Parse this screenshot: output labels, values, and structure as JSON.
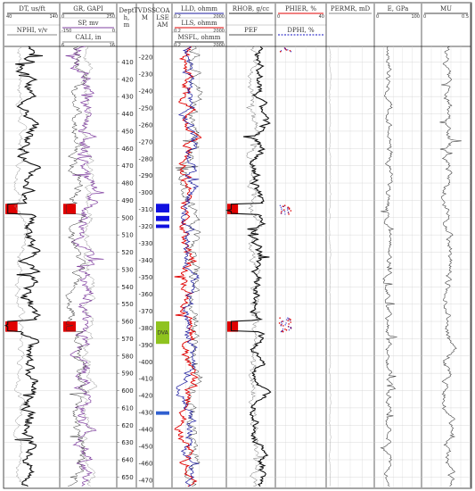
{
  "chart_data": {
    "type": "line",
    "title": "",
    "depth_track": {
      "title": "Dept h, m",
      "ticks": [
        "410",
        "420",
        "430",
        "440",
        "450",
        "460",
        "470",
        "480",
        "490",
        "500",
        "510",
        "520",
        "530",
        "540",
        "550",
        "560",
        "570",
        "580",
        "590",
        "600",
        "610",
        "620",
        "630",
        "640",
        "650"
      ]
    },
    "tvdss_track": {
      "title": "TVDSS M",
      "ticks": [
        "-220",
        "-230",
        "-240",
        "-250",
        "-260",
        "-270",
        "-280",
        "-290",
        "-300",
        "-310",
        "-320",
        "-330",
        "-340",
        "-350",
        "-360",
        "-370",
        "-380",
        "-390",
        "-400",
        "-410",
        "-420",
        "-430",
        "-440",
        "-450",
        "-460",
        "-470"
      ]
    },
    "zone_track": {
      "title": "COA LSE AM",
      "zones": [
        {
          "label": "",
          "top": 492,
          "bottom": 497,
          "color": "#1010e0"
        },
        {
          "label": "",
          "top": 499,
          "bottom": 502,
          "color": "#1010e0"
        },
        {
          "label": "",
          "top": 504,
          "bottom": 506,
          "color": "#1010e0"
        },
        {
          "label": "DVA",
          "top": 560,
          "bottom": 573,
          "color": "#8fc31f"
        },
        {
          "label": "",
          "top": 612,
          "bottom": 614,
          "color": "#3060d0"
        }
      ]
    },
    "tracks": [
      {
        "id": "sonic",
        "curves": [
          {
            "name": "DT, us/ft",
            "min": "40",
            "max": "140",
            "color": "#333333",
            "style": "solid"
          },
          {
            "name": "NPHI, v/v",
            "min": "",
            "max": "",
            "color": "#888888",
            "style": "solid"
          }
        ],
        "fills": [
          {
            "top": 492,
            "bottom": 498,
            "color": "#e00000"
          },
          {
            "top": 560,
            "bottom": 566,
            "color": "#e00000"
          }
        ]
      },
      {
        "id": "gr",
        "curves": [
          {
            "name": "GR, GAPI",
            "min": "0",
            "max": "250",
            "color": "#222222",
            "style": "solid"
          },
          {
            "name": "SP, mv",
            "min": "-150",
            "max": "0",
            "color": "#8040a0",
            "style": "solid"
          },
          {
            "name": "CALI, in",
            "min": "6",
            "max": "16",
            "color": "#888888",
            "style": "solid"
          }
        ],
        "fills": [
          {
            "top": 492,
            "bottom": 498,
            "color": "#e00000"
          },
          {
            "top": 560,
            "bottom": 566,
            "color": "#e00000"
          }
        ]
      },
      {
        "id": "res",
        "curves": [
          {
            "name": "LLD, ohmm",
            "min": "0.2",
            "max": "2000",
            "color": "#1a1a9e",
            "style": "solid"
          },
          {
            "name": "LLS, ohmm",
            "min": "0.2",
            "max": "2000",
            "color": "#e00000",
            "style": "solid"
          },
          {
            "name": "MSFL, ohmm",
            "min": "0.2",
            "max": "2000",
            "color": "#333333",
            "style": "solid"
          }
        ]
      },
      {
        "id": "dens",
        "curves": [
          {
            "name": "RHOB, g/cc",
            "min": "",
            "max": "",
            "color": "#222222",
            "style": "solid"
          },
          {
            "name": "PEF",
            "min": "",
            "max": "",
            "color": "#555555",
            "style": "solid"
          }
        ],
        "fills": [
          {
            "top": 492,
            "bottom": 498,
            "color": "#e00000"
          },
          {
            "top": 560,
            "bottom": 566,
            "color": "#e00000"
          }
        ]
      },
      {
        "id": "phi",
        "curves": [
          {
            "name": "PHIER, %",
            "min": "0",
            "max": "40",
            "color": "#e00000",
            "style": "solid"
          },
          {
            "name": "DPHI, %",
            "min": "",
            "max": "",
            "color": "#1010c0",
            "style": "dashed"
          }
        ]
      },
      {
        "id": "perm",
        "curves": [
          {
            "name": "PERMR, mD",
            "min": "",
            "max": "",
            "color": "#888888",
            "style": "solid"
          }
        ]
      },
      {
        "id": "emod",
        "curves": [
          {
            "name": "E, GPa",
            "min": "0",
            "max": "100",
            "color": "#444444",
            "style": "solid"
          }
        ]
      },
      {
        "id": "mu",
        "curves": [
          {
            "name": "MU",
            "min": "0",
            "max": "0.5",
            "color": "#444444",
            "style": "solid"
          }
        ]
      }
    ],
    "depth_range": [
      401,
      656
    ],
    "grid": true,
    "legend": "track-headers"
  }
}
